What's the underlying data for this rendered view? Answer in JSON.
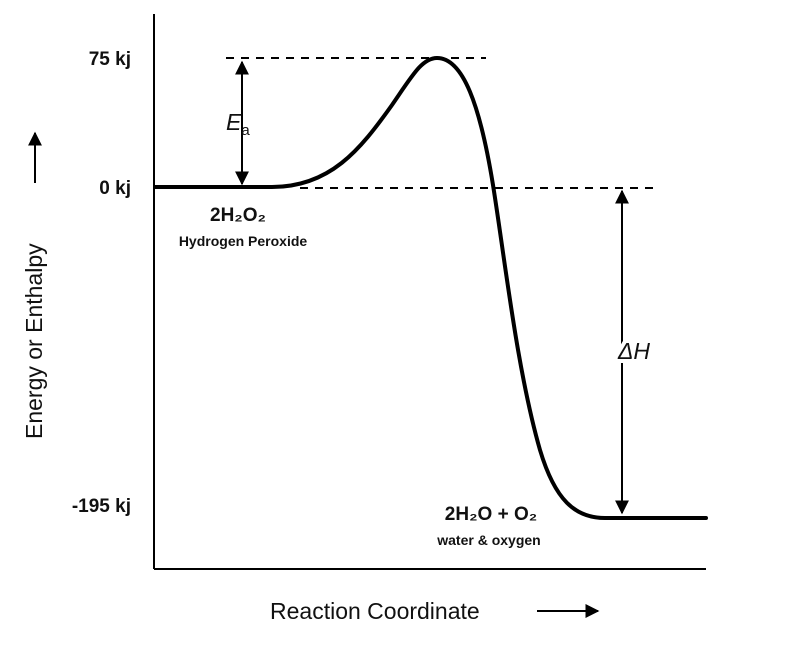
{
  "y_axis": {
    "title": "Energy or Enthalpy",
    "arrow": "→",
    "ticks": [
      "75 kj",
      "0 kj",
      "-195 kj"
    ]
  },
  "x_axis": {
    "title": "Reaction Coordinate",
    "arrow": "⟶"
  },
  "reactants": {
    "formula": "2H₂O₂",
    "name": "Hydrogen Peroxide"
  },
  "products": {
    "formula": "2H₂O + O₂",
    "name": "water & oxygen"
  },
  "activation_energy": {
    "symbol": "E",
    "subscript": "a"
  },
  "enthalpy_change": {
    "symbol": "ΔH"
  },
  "levels": {
    "peak": 75,
    "reactant": 0,
    "product": -195
  },
  "colors": {
    "line": "#000000",
    "text": "#111111"
  }
}
